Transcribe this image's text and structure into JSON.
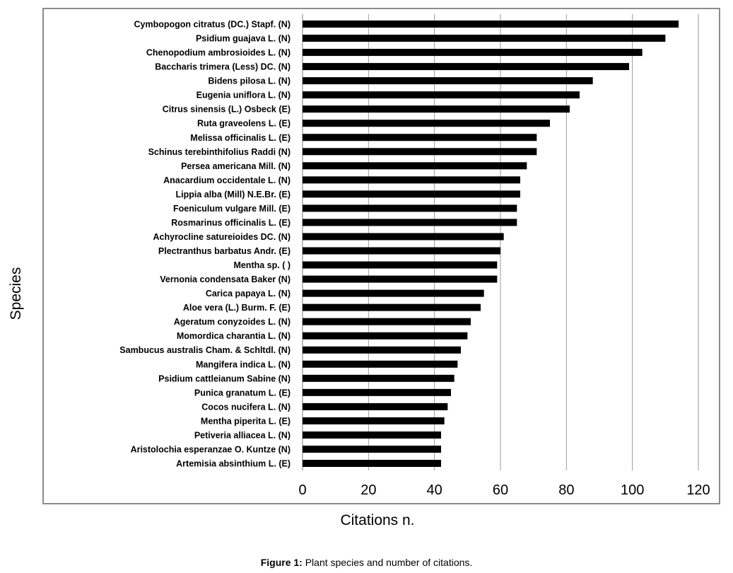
{
  "caption": {
    "prefix": "Figure 1:",
    "text": " Plant species and number of citations."
  },
  "chart_data": {
    "type": "bar",
    "orientation": "horizontal",
    "xlabel": "Citations  n.",
    "ylabel": "Species",
    "xlim": [
      0,
      120
    ],
    "xticks": [
      0,
      20,
      40,
      60,
      80,
      100,
      120
    ],
    "grid": true,
    "bar_color": "#000000",
    "categories": [
      "Cymbopogon citratus (DC.) Stapf. (N)",
      "Psidium guajava L. (N)",
      "Chenopodium ambrosioides L. (N)",
      "Baccharis trimera (Less) DC. (N)",
      "Bidens pilosa L. (N)",
      "Eugenia uniflora L. (N)",
      "Citrus sinensis (L.) Osbeck (E)",
      "Ruta graveolens L. (E)",
      "Melissa officinalis L. (E)",
      "Schinus terebinthifolius Raddi (N)",
      "Persea americana Mill. (N)",
      "Anacardium occidentale L. (N)",
      "Lippia alba (Mill) N.E.Br. (E)",
      "Foeniculum vulgare Mill. (E)",
      "Rosmarinus officinalis L. (E)",
      "Achyrocline satureioides DC. (N)",
      "Plectranthus barbatus Andr. (E)",
      "Mentha sp. ( )",
      "Vernonia condensata Baker (N)",
      "Carica papaya L. (N)",
      "Aloe vera (L.) Burm. F. (E)",
      "Ageratum conyzoides L. (N)",
      "Momordica charantia L. (N)",
      "Sambucus australis Cham. & Schltdl. (N)",
      "Mangifera indica L. (N)",
      "Psidium cattleianum Sabine (N)",
      "Punica granatum L. (E)",
      "Cocos nucifera L. (N)",
      "Mentha piperita L. (E)",
      "Petiveria alliacea L. (N)",
      "Aristolochia esperanzae O. Kuntze (N)",
      "Artemisia absinthium L. (E)"
    ],
    "values": [
      114,
      110,
      103,
      99,
      88,
      84,
      81,
      75,
      71,
      71,
      68,
      66,
      66,
      65,
      65,
      61,
      60,
      59,
      59,
      55,
      54,
      51,
      50,
      48,
      47,
      46,
      45,
      44,
      43,
      42,
      42,
      42
    ]
  }
}
